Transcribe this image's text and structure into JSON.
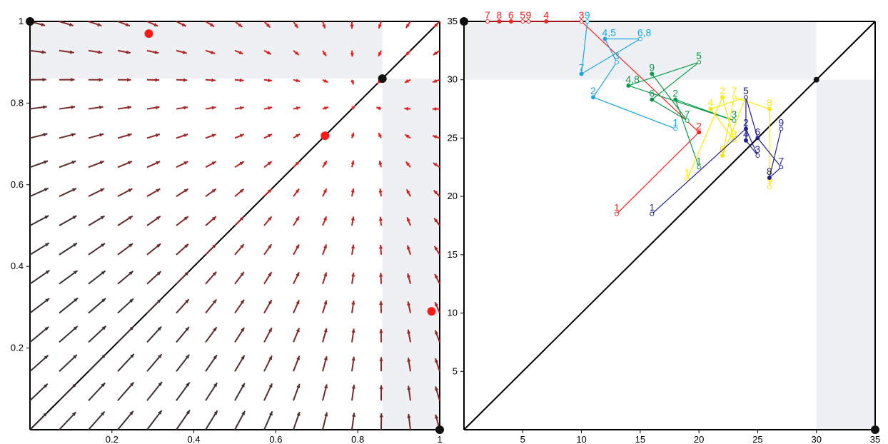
{
  "chart_data": [
    {
      "type": "vector-field",
      "xlim": [
        0,
        1
      ],
      "ylim": [
        0,
        1
      ],
      "x_ticks": [
        "0.2",
        "0.4",
        "0.6",
        "0.8",
        "1"
      ],
      "y_ticks": [
        "0.2",
        "0.4",
        "0.6",
        "0.8",
        "1"
      ],
      "shaded_regions": [
        {
          "x": [
            0.86,
            1.0
          ],
          "y": [
            0.0,
            0.86
          ]
        },
        {
          "x": [
            0.0,
            0.86
          ],
          "y": [
            0.86,
            1.0
          ]
        }
      ],
      "diagonal": true,
      "fixed_points_black": [
        [
          0,
          1
        ],
        [
          0.86,
          0.86
        ],
        [
          1,
          0
        ]
      ],
      "fixed_points_red": [
        [
          0.29,
          0.97
        ],
        [
          0.72,
          0.72
        ],
        [
          0.98,
          0.29
        ]
      ],
      "arrow_color_far": "#3b2f2f",
      "arrow_color_near": "#ff1a1a"
    },
    {
      "type": "scatter",
      "xlim": [
        0,
        35
      ],
      "ylim": [
        0,
        35
      ],
      "x_ticks": [
        "5",
        "10",
        "15",
        "20",
        "25",
        "30",
        "35"
      ],
      "y_ticks": [
        "5",
        "10",
        "15",
        "20",
        "25",
        "30",
        "35"
      ],
      "shaded_regions": [
        {
          "x": [
            30,
            35
          ],
          "y": [
            0,
            30
          ]
        },
        {
          "x": [
            0,
            30
          ],
          "y": [
            30,
            35
          ]
        }
      ],
      "diagonal": true,
      "fixed_points_black": [
        [
          0,
          35
        ],
        [
          30,
          30
        ],
        [
          35,
          0
        ]
      ],
      "series": [
        {
          "color": "#ff2020",
          "points": [
            {
              "x": 13,
              "y": 18.5,
              "label": "1"
            },
            {
              "x": 20,
              "y": 25.5,
              "label": "2"
            },
            {
              "x": 10,
              "y": 35,
              "label": "3"
            },
            {
              "x": 7,
              "y": 35,
              "label": "4"
            },
            {
              "x": 5,
              "y": 35,
              "label": "5"
            },
            {
              "x": 4,
              "y": 35,
              "label": "6"
            },
            {
              "x": 2,
              "y": 35,
              "label": "7"
            },
            {
              "x": 3,
              "y": 35,
              "label": "8"
            },
            {
              "x": 5.5,
              "y": 35,
              "label": "9"
            }
          ]
        },
        {
          "color": "#1aa7e0",
          "points": [
            {
              "x": 18,
              "y": 25.8,
              "label": "1"
            },
            {
              "x": 11,
              "y": 28.5,
              "label": "2"
            },
            {
              "x": 13,
              "y": 31.5,
              "label": "3"
            },
            {
              "x": 12,
              "y": 33.5,
              "label": "4,5"
            },
            {
              "x": 15,
              "y": 33.5,
              "label": "6,8"
            },
            {
              "x": 10,
              "y": 30.5,
              "label": "7"
            },
            {
              "x": 10.5,
              "y": 35,
              "label": "9"
            }
          ]
        },
        {
          "color": "#0a9a4a",
          "points": [
            {
              "x": 20,
              "y": 22.5,
              "label": "1"
            },
            {
              "x": 18,
              "y": 28.3,
              "label": "2"
            },
            {
              "x": 23,
              "y": 26.5,
              "label": "3"
            },
            {
              "x": 14,
              "y": 29.5,
              "label": "4,8"
            },
            {
              "x": 20,
              "y": 31.5,
              "label": "5"
            },
            {
              "x": 16,
              "y": 28.3,
              "label": "6"
            },
            {
              "x": 19,
              "y": 26.5,
              "label": "7"
            },
            {
              "x": 16,
              "y": 30.5,
              "label": "9"
            }
          ]
        },
        {
          "color": "#ffe800",
          "points": [
            {
              "x": 19,
              "y": 21.5,
              "label": "1"
            },
            {
              "x": 22,
              "y": 28.5,
              "label": "2"
            },
            {
              "x": 23,
              "y": 24.8,
              "label": "3"
            },
            {
              "x": 21,
              "y": 27.5,
              "label": "4"
            },
            {
              "x": 24,
              "y": 28.5,
              "label": "5"
            },
            {
              "x": 22,
              "y": 23.5,
              "label": "6"
            },
            {
              "x": 23,
              "y": 28.5,
              "label": "7"
            },
            {
              "x": 26,
              "y": 27.5,
              "label": "8"
            },
            {
              "x": 26,
              "y": 20.8,
              "label": "9"
            }
          ]
        },
        {
          "color": "#1f1f8f",
          "points": [
            {
              "x": 16,
              "y": 18.5,
              "label": "1"
            },
            {
              "x": 24,
              "y": 25.8,
              "label": "2"
            },
            {
              "x": 25,
              "y": 23.5,
              "label": "3"
            },
            {
              "x": 24,
              "y": 24.8,
              "label": "4"
            },
            {
              "x": 24,
              "y": 28.5,
              "label": "5"
            },
            {
              "x": 25,
              "y": 25,
              "label": "6"
            },
            {
              "x": 27,
              "y": 22.5,
              "label": "7"
            },
            {
              "x": 26,
              "y": 21.6,
              "label": "8"
            },
            {
              "x": 27,
              "y": 25.8,
              "label": "9"
            }
          ]
        }
      ]
    }
  ]
}
